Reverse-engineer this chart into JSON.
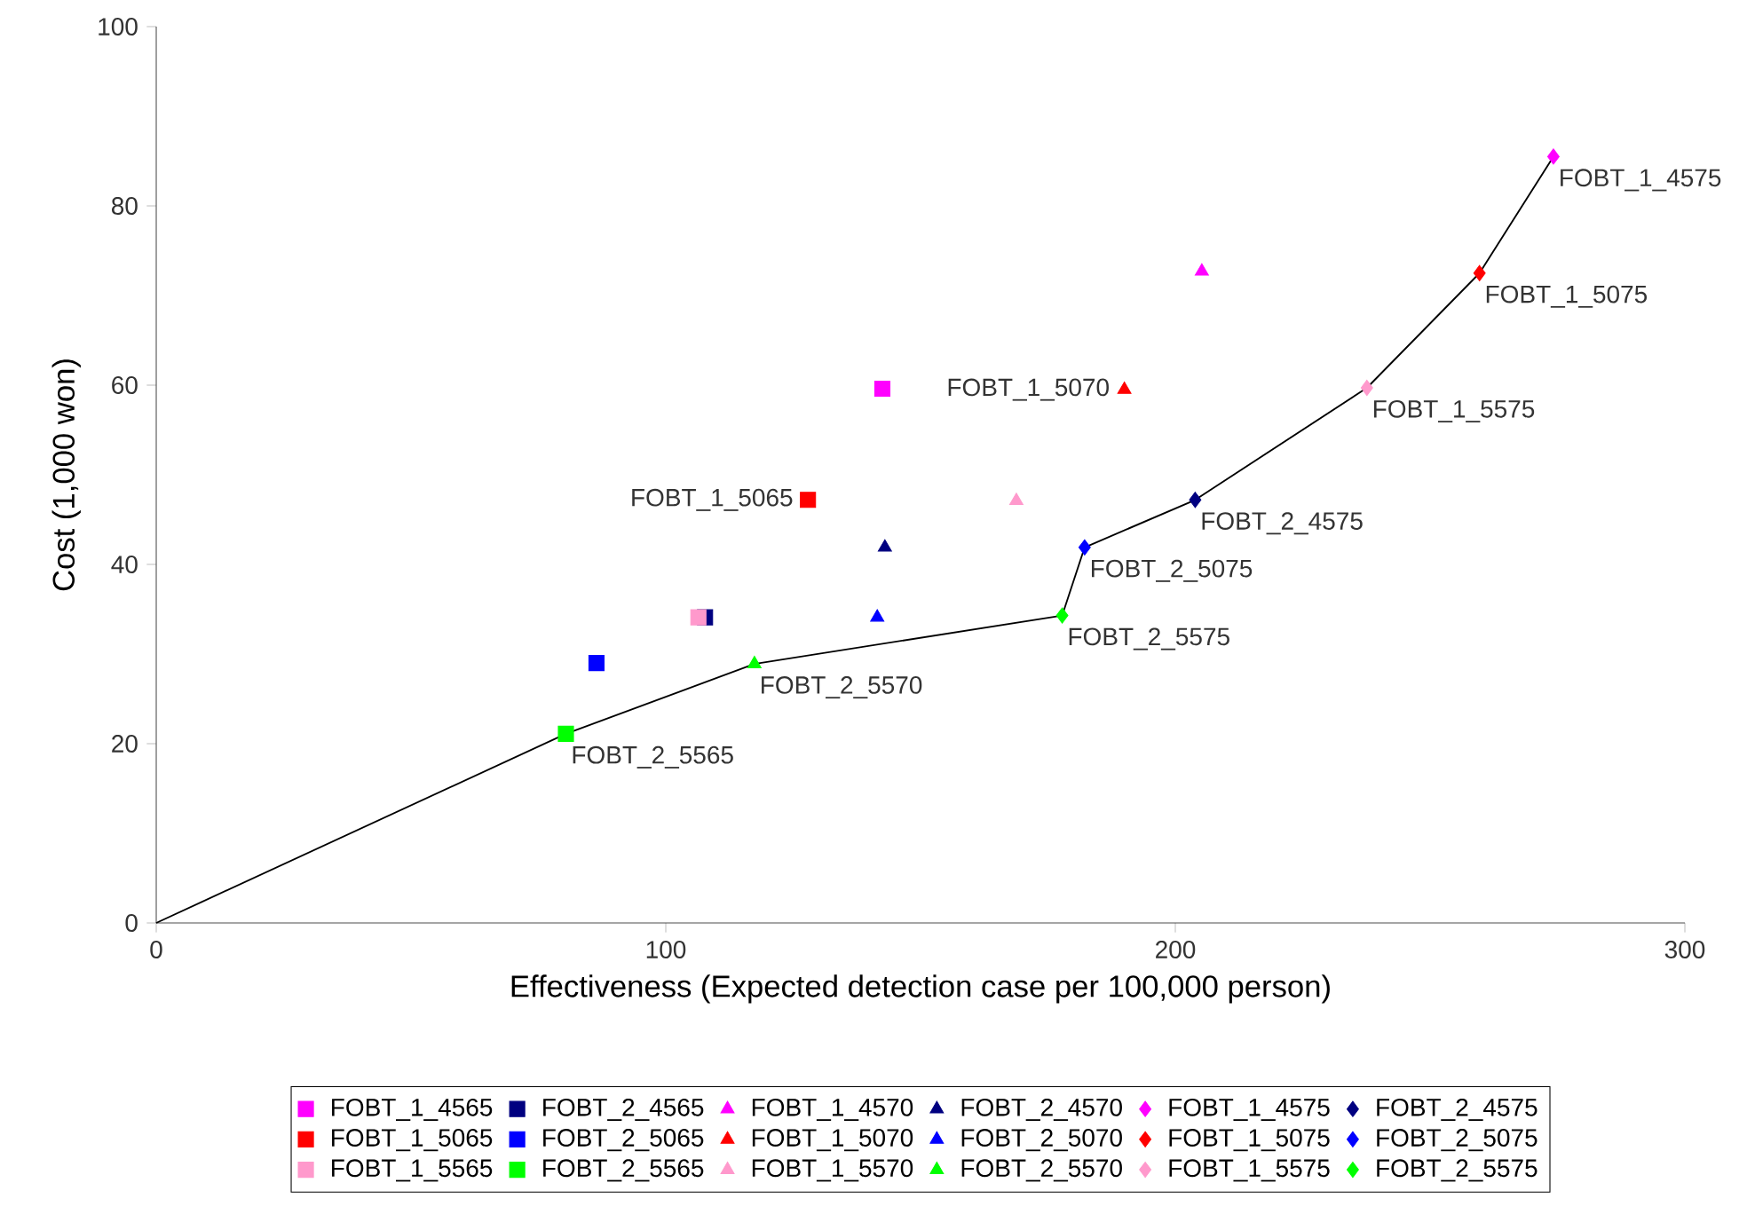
{
  "chart_data": {
    "type": "scatter",
    "xlabel": "Effectiveness (Expected detection case per 100,000 person)",
    "ylabel": "Cost (1,000 won)",
    "xlim": [
      0,
      300
    ],
    "ylim": [
      0,
      100
    ],
    "xticks": [
      0,
      100,
      200,
      300
    ],
    "yticks": [
      0,
      20,
      40,
      60,
      80,
      100
    ],
    "legend": "bottom",
    "series": [
      {
        "name": "FOBT_1_4565",
        "color": "#ff00ff",
        "marker": "square",
        "x": [
          142.5
        ],
        "values": [
          59.6
        ]
      },
      {
        "name": "FOBT_2_4565",
        "color": "#000080",
        "marker": "square",
        "x": [
          107.7
        ],
        "values": [
          34.1
        ]
      },
      {
        "name": "FOBT_1_4570",
        "color": "#ff00ff",
        "marker": "triangle",
        "x": [
          205.2
        ],
        "values": [
          72.7
        ]
      },
      {
        "name": "FOBT_2_4570",
        "color": "#000080",
        "marker": "triangle",
        "x": [
          143.0
        ],
        "values": [
          41.9
        ]
      },
      {
        "name": "FOBT_1_4575",
        "color": "#ff00ff",
        "marker": "diamond",
        "x": [
          274.2
        ],
        "values": [
          85.5
        ]
      },
      {
        "name": "FOBT_2_4575",
        "color": "#000080",
        "marker": "diamond",
        "x": [
          203.9
        ],
        "values": [
          47.2
        ]
      },
      {
        "name": "FOBT_1_5065",
        "color": "#ff0000",
        "marker": "square",
        "x": [
          127.9
        ],
        "values": [
          47.2
        ]
      },
      {
        "name": "FOBT_2_5065",
        "color": "#0000ff",
        "marker": "square",
        "x": [
          86.4
        ],
        "values": [
          29.0
        ]
      },
      {
        "name": "FOBT_1_5070",
        "color": "#ff0000",
        "marker": "triangle",
        "x": [
          190.0
        ],
        "values": [
          59.5
        ]
      },
      {
        "name": "FOBT_2_5070",
        "color": "#0000ff",
        "marker": "triangle",
        "x": [
          141.5
        ],
        "values": [
          34.1
        ]
      },
      {
        "name": "FOBT_1_5075",
        "color": "#ff0000",
        "marker": "diamond",
        "x": [
          259.7
        ],
        "values": [
          72.5
        ]
      },
      {
        "name": "FOBT_2_5075",
        "color": "#0000ff",
        "marker": "diamond",
        "x": [
          182.2
        ],
        "values": [
          41.9
        ]
      },
      {
        "name": "FOBT_1_5565",
        "color": "#ff99cc",
        "marker": "square",
        "x": [
          106.4
        ],
        "values": [
          34.1
        ]
      },
      {
        "name": "FOBT_2_5565",
        "color": "#00ff00",
        "marker": "square",
        "x": [
          80.4
        ],
        "values": [
          21.1
        ]
      },
      {
        "name": "FOBT_1_5570",
        "color": "#ff99cc",
        "marker": "triangle",
        "x": [
          168.8
        ],
        "values": [
          47.1
        ]
      },
      {
        "name": "FOBT_2_5570",
        "color": "#00ff00",
        "marker": "triangle",
        "x": [
          117.4
        ],
        "values": [
          28.9
        ]
      },
      {
        "name": "FOBT_1_5575",
        "color": "#ff99cc",
        "marker": "diamond",
        "x": [
          237.6
        ],
        "values": [
          59.7
        ]
      },
      {
        "name": "FOBT_2_5575",
        "color": "#00ff00",
        "marker": "diamond",
        "x": [
          177.8
        ],
        "values": [
          34.3
        ]
      },
      {
        "type": "line",
        "color": "#000000",
        "marker": "none",
        "x": [
          0,
          80.4,
          117.4,
          177.8,
          182.2,
          203.9,
          237.6,
          259.7,
          274.2
        ],
        "values": [
          0,
          21.1,
          28.9,
          34.3,
          41.9,
          47.2,
          59.7,
          72.5,
          85.5
        ]
      }
    ],
    "annotations": [
      {
        "text": "FOBT_1_4575",
        "x": 274.2,
        "y": 85.5
      },
      {
        "text": "FOBT_1_5075",
        "x": 259.7,
        "y": 72.5
      },
      {
        "text": "FOBT_1_5575",
        "x": 237.6,
        "y": 59.7
      },
      {
        "text": "FOBT_1_5070",
        "x": 190.0,
        "y": 59.5
      },
      {
        "text": "FOBT_2_4575",
        "x": 203.9,
        "y": 47.2
      },
      {
        "text": "FOBT_1_5065",
        "x": 127.9,
        "y": 47.2
      },
      {
        "text": "FOBT_2_5075",
        "x": 182.2,
        "y": 41.9
      },
      {
        "text": "FOBT_2_5575",
        "x": 177.8,
        "y": 34.3
      },
      {
        "text": "FOBT_2_5570",
        "x": 117.4,
        "y": 28.9
      },
      {
        "text": "FOBT_2_5565",
        "x": 80.4,
        "y": 21.1
      }
    ]
  }
}
